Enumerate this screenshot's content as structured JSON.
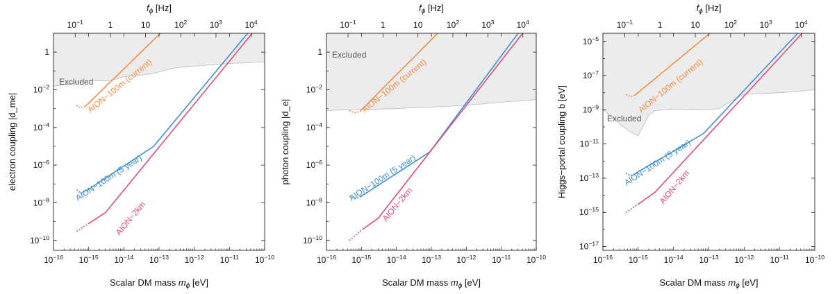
{
  "chart_data": [
    {
      "type": "line",
      "xlabel": "Scalar DM mass m_ϕ [eV]",
      "ylabel": "electron coupling |d_me|",
      "top_label": "f_ϕ [Hz]",
      "x_scale": "log",
      "y_scale": "log",
      "xlim": [
        1e-16,
        1e-10
      ],
      "ylim": [
        3e-11,
        10.0
      ],
      "x_ticks": [
        "10^-16",
        "10^-15",
        "10^-14",
        "10^-13",
        "10^-12",
        "10^-11",
        "10^-10"
      ],
      "y_ticks": [
        "10^-10",
        "10^-8",
        "10^-6",
        "10^-4",
        "10^-2",
        "1"
      ],
      "top_ticks": [
        "10^-1",
        "1",
        "10",
        "10^2",
        "10^3",
        "10^4"
      ],
      "excluded_label": "Excluded",
      "excluded_boundary": [
        [
          1e-16,
          0.015
        ],
        [
          1e-15,
          0.03
        ],
        [
          4e-15,
          0.03
        ],
        [
          1e-14,
          0.05
        ],
        [
          3e-14,
          0.06
        ],
        [
          6e-14,
          0.07
        ],
        [
          1e-13,
          0.09
        ],
        [
          3e-13,
          0.15
        ],
        [
          1e-12,
          0.18
        ],
        [
          1e-11,
          0.25
        ],
        [
          1e-10,
          0.3
        ]
      ],
      "series": [
        {
          "name": "AION−100m (current)",
          "color": "#f28c45",
          "dotted": [
            [
              4.5e-16,
              0.0015
            ],
            [
              6e-16,
              0.0011
            ],
            [
              8e-16,
              0.0013
            ]
          ],
          "solid": [
            [
              8e-16,
              0.0013
            ],
            [
              1.6e-13,
              20
            ]
          ]
        },
        {
          "name": "AION−100m (5 year)",
          "color": "#3d8fd1",
          "dotted": [
            [
              4.5e-16,
              5e-08
            ],
            [
              6e-16,
              3.3e-08
            ],
            [
              8e-16,
              4e-08
            ]
          ],
          "solid": [
            [
              8e-16,
              4e-08
            ],
            [
              7e-14,
              1e-05
            ],
            [
              4.5e-11,
              20
            ]
          ]
        },
        {
          "name": "AION−2km",
          "color": "#e14a7a",
          "dotted": [
            [
              4.5e-16,
              3e-10
            ],
            [
              1e-15,
              8e-10
            ]
          ],
          "solid": [
            [
              1e-15,
              8e-10
            ],
            [
              3e-15,
              3e-09
            ],
            [
              6e-11,
              20
            ]
          ]
        }
      ]
    },
    {
      "type": "line",
      "xlabel": "Scalar DM mass m_ϕ [eV]",
      "ylabel": "photon coupling |d_e|",
      "top_label": "f_ϕ [Hz]",
      "x_scale": "log",
      "y_scale": "log",
      "xlim": [
        1e-16,
        1e-10
      ],
      "ylim": [
        3e-11,
        10.0
      ],
      "x_ticks": [
        "10^-16",
        "10^-15",
        "10^-14",
        "10^-13",
        "10^-12",
        "10^-11",
        "10^-10"
      ],
      "y_ticks": [
        "10^-10",
        "10^-8",
        "10^-6",
        "10^-4",
        "10^-2",
        "1"
      ],
      "top_ticks": [
        "10^-1",
        "1",
        "10",
        "10^2",
        "10^3",
        "10^4"
      ],
      "excluded_label": "Excluded",
      "excluded_boundary": [
        [
          1e-16,
          0.0008
        ],
        [
          1e-15,
          0.0009
        ],
        [
          1e-14,
          0.001
        ],
        [
          6e-14,
          0.0012
        ],
        [
          1e-13,
          0.0012
        ],
        [
          1e-12,
          0.0015
        ],
        [
          1e-11,
          0.0022
        ],
        [
          1e-10,
          0.003
        ]
      ],
      "series": [
        {
          "name": "AION−100m (current)",
          "color": "#f28c45",
          "dotted": [
            [
              4.5e-16,
              0.0008
            ],
            [
              6.5e-16,
              0.0006
            ],
            [
              9e-16,
              0.0007
            ]
          ],
          "solid": [
            [
              9e-16,
              0.0007
            ],
            [
              2.2e-13,
              20
            ]
          ]
        },
        {
          "name": "AION−100m (5 year)",
          "color": "#3d8fd1",
          "dotted": [
            [
              4.5e-16,
              2.2e-08
            ],
            [
              6.5e-16,
              1.6e-08
            ],
            [
              9e-16,
              2e-08
            ]
          ],
          "solid": [
            [
              9e-16,
              2e-08
            ],
            [
              9e-14,
              5e-06
            ],
            [
              4e-11,
              20
            ]
          ]
        },
        {
          "name": "AION−2km",
          "color": "#e14a7a",
          "dotted": [
            [
              4.5e-16,
              1e-10
            ],
            [
              1.1e-15,
              4e-10
            ]
          ],
          "solid": [
            [
              1.1e-15,
              4e-10
            ],
            [
              3e-15,
              1.5e-09
            ],
            [
              5.5e-11,
              20
            ]
          ]
        }
      ]
    },
    {
      "type": "line",
      "xlabel": "Scalar DM mass m_ϕ [eV]",
      "ylabel": "Higgs−portal coupling b [eV]",
      "top_label": "f_ϕ [Hz]",
      "x_scale": "log",
      "y_scale": "log",
      "xlim": [
        1e-16,
        1e-10
      ],
      "ylim": [
        6e-18,
        3e-05
      ],
      "x_ticks": [
        "10^-16",
        "10^-15",
        "10^-14",
        "10^-13",
        "10^-12",
        "10^-11",
        "10^-10"
      ],
      "y_ticks": [
        "10^-17",
        "10^-15",
        "10^-13",
        "10^-11",
        "10^-9",
        "10^-7",
        "10^-5"
      ],
      "top_ticks": [
        "10^-1",
        "1",
        "10",
        "10^2",
        "10^3",
        "10^4"
      ],
      "excluded_label": "Excluded",
      "excluded_boundary": [
        [
          1e-16,
          1e-09
        ],
        [
          3e-16,
          1.5e-10
        ],
        [
          6e-16,
          5e-11
        ],
        [
          1e-15,
          3e-11
        ],
        [
          2e-15,
          5e-10
        ],
        [
          3e-15,
          9e-10
        ],
        [
          1e-14,
          1.1e-09
        ],
        [
          1e-13,
          1e-09
        ],
        [
          2e-13,
          1.2e-09
        ],
        [
          4e-13,
          3e-09
        ],
        [
          1e-12,
          8e-09
        ],
        [
          1e-11,
          1e-08
        ],
        [
          1e-10,
          1.5e-08
        ]
      ],
      "series": [
        {
          "name": "AION−100m (current)",
          "color": "#f28c45",
          "dotted": [
            [
              4.5e-16,
              8e-09
            ],
            [
              6e-16,
              6e-09
            ],
            [
              8e-16,
              7e-09
            ]
          ],
          "solid": [
            [
              8e-16,
              7e-09
            ],
            [
              1.6e-13,
              6e-05
            ]
          ]
        },
        {
          "name": "AION−100m (5 year)",
          "color": "#3d8fd1",
          "dotted": [
            [
              4.5e-16,
              2e-13
            ],
            [
              6e-16,
              1.4e-13
            ],
            [
              8e-16,
              1.8e-13
            ]
          ],
          "solid": [
            [
              8e-16,
              1.8e-13
            ],
            [
              7e-14,
              4e-11
            ],
            [
              4.5e-11,
              6e-05
            ]
          ]
        },
        {
          "name": "AION−2km",
          "color": "#e14a7a",
          "dotted": [
            [
              4.5e-16,
              1e-15
            ],
            [
              1e-15,
              3e-15
            ]
          ],
          "solid": [
            [
              1e-15,
              3e-15
            ],
            [
              3e-15,
              1.5e-14
            ],
            [
              6e-11,
              6e-05
            ]
          ]
        }
      ]
    }
  ]
}
